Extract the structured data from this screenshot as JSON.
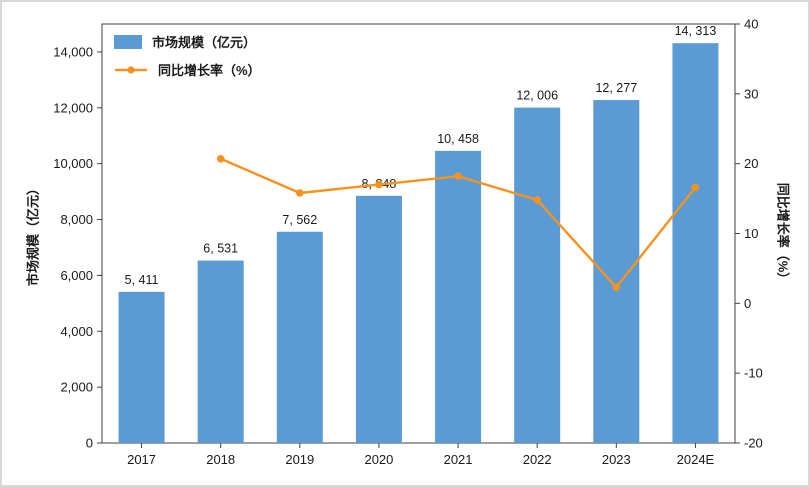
{
  "chart_data": {
    "type": "bar",
    "combo": "bar+line",
    "title": "",
    "categories": [
      "2017",
      "2018",
      "2019",
      "2020",
      "2021",
      "2022",
      "2023",
      "2024E"
    ],
    "series": [
      {
        "name": "市场规模（亿元）",
        "type": "bar",
        "axis": "left",
        "color": "#5b9bd5",
        "values": [
          5411,
          6531,
          7562,
          8848,
          10458,
          12006,
          12277,
          14313
        ],
        "labels": [
          "5, 411",
          "6, 531",
          "7, 562",
          "8, 848",
          "10, 458",
          "12, 006",
          "12, 277",
          "14, 313"
        ]
      },
      {
        "name": "同比增长率（%）",
        "type": "line",
        "axis": "right",
        "color": "#f6921e",
        "x": [
          "2018",
          "2019",
          "2020",
          "2021",
          "2022",
          "2023",
          "2024E"
        ],
        "values": [
          20.7,
          15.8,
          17.0,
          18.2,
          14.8,
          2.3,
          16.6
        ]
      }
    ],
    "left_axis": {
      "label": "市场规模（亿元）",
      "ticks": [
        "0",
        "2,000",
        "4,000",
        "6,000",
        "8,000",
        "10,000",
        "12,000",
        "14,000"
      ],
      "tick_values": [
        0,
        2000,
        4000,
        6000,
        8000,
        10000,
        12000,
        14000
      ],
      "min": 0,
      "max": 15000
    },
    "right_axis": {
      "label": "同比增长率（%）",
      "ticks": [
        "-20",
        "-10",
        "0",
        "10",
        "20",
        "30",
        "40"
      ],
      "tick_values": [
        -20,
        -10,
        0,
        10,
        20,
        30,
        40
      ],
      "min": -20,
      "max": 40
    },
    "legend": [
      {
        "label": "市场规模（亿元）",
        "swatch": "bar",
        "color": "#5b9bd5"
      },
      {
        "label": "同比增长率（%）",
        "swatch": "line",
        "color": "#f6921e"
      }
    ],
    "grid": false,
    "legend_position": "top-left",
    "colors": {
      "bar": "#5b9bd5",
      "line": "#f6921e",
      "text": "#1a1a1a",
      "spine": "#404040"
    }
  }
}
